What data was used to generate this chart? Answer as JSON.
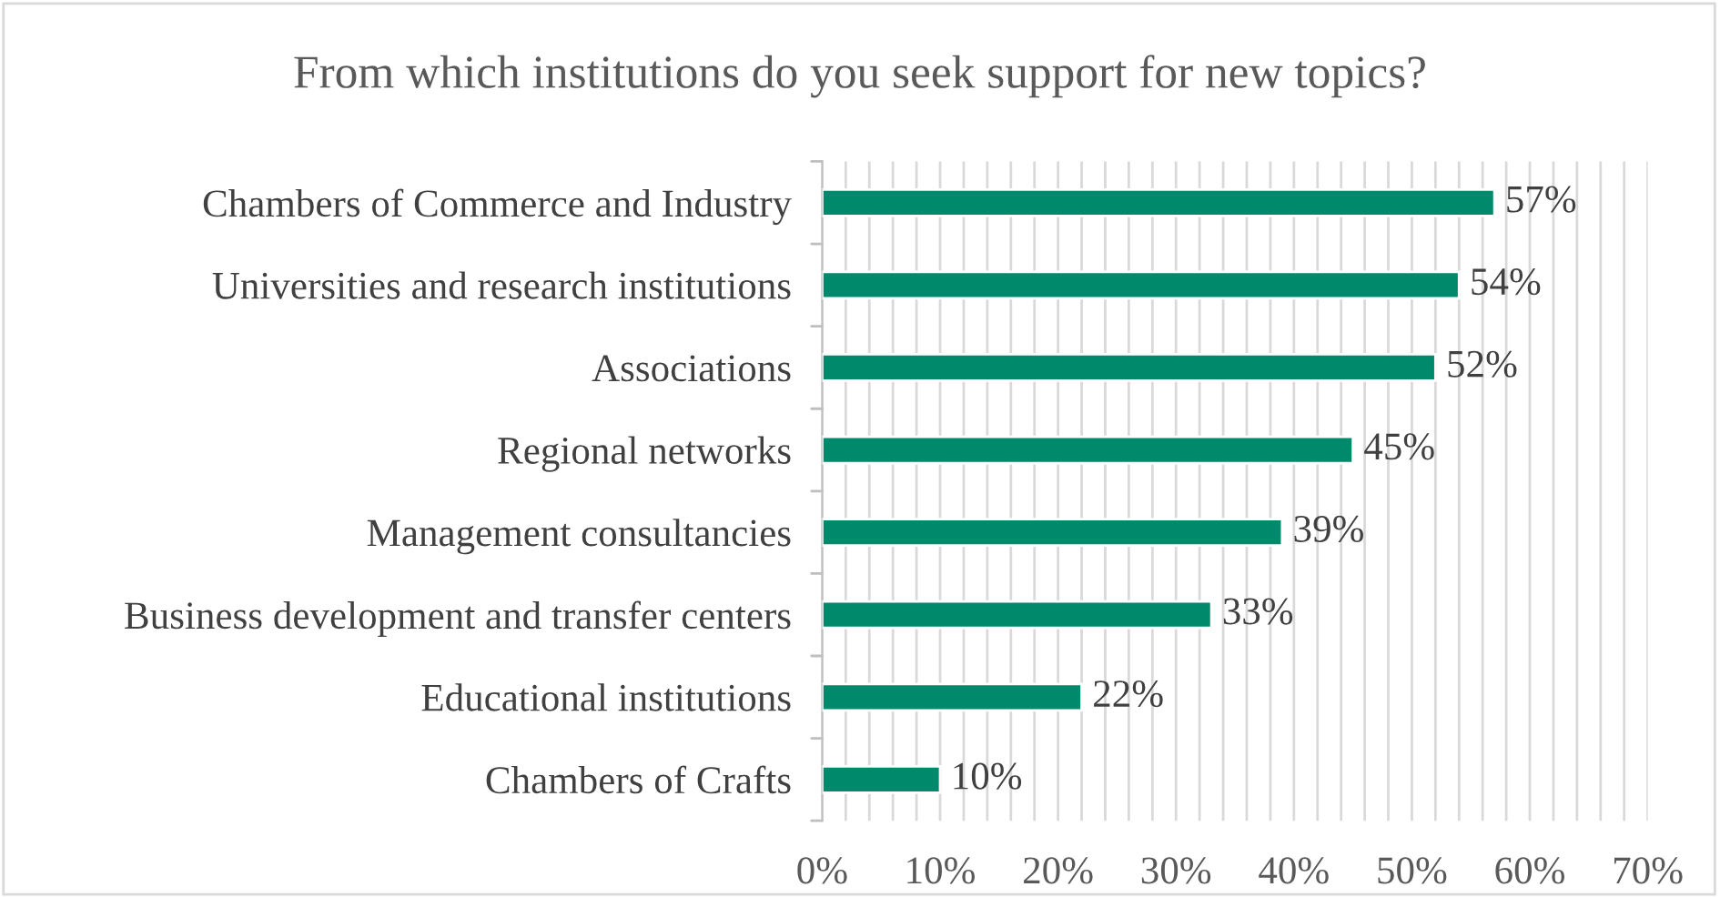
{
  "chart_data": {
    "type": "bar",
    "orientation": "horizontal",
    "title": "From which institutions do you seek support for new topics?",
    "categories": [
      "Chambers of Commerce and Industry",
      "Universities and research institutions",
      "Associations",
      "Regional networks",
      "Management consultancies",
      "Business development and transfer centers",
      "Educational institutions",
      "Chambers of Crafts"
    ],
    "values": [
      57,
      54,
      52,
      45,
      39,
      33,
      22,
      10
    ],
    "color": "#00896b",
    "value_labels": [
      "57%",
      "54%",
      "52%",
      "45%",
      "39%",
      "33%",
      "22%",
      "10%"
    ],
    "xlim": [
      0,
      70
    ],
    "xticks": [
      {
        "value": 0,
        "label": "0%"
      },
      {
        "value": 2,
        "label": null
      },
      {
        "value": 4,
        "label": null
      },
      {
        "value": 6,
        "label": null
      },
      {
        "value": 8,
        "label": null
      },
      {
        "value": 10,
        "label": "10%"
      },
      {
        "value": 12,
        "label": null
      },
      {
        "value": 14,
        "label": null
      },
      {
        "value": 16,
        "label": null
      },
      {
        "value": 18,
        "label": null
      },
      {
        "value": 20,
        "label": "20%"
      },
      {
        "value": 22,
        "label": null
      },
      {
        "value": 24,
        "label": null
      },
      {
        "value": 26,
        "label": null
      },
      {
        "value": 28,
        "label": null
      },
      {
        "value": 30,
        "label": "30%"
      },
      {
        "value": 32,
        "label": null
      },
      {
        "value": 34,
        "label": null
      },
      {
        "value": 36,
        "label": null
      },
      {
        "value": 38,
        "label": null
      },
      {
        "value": 40,
        "label": "40%"
      },
      {
        "value": 42,
        "label": null
      },
      {
        "value": 44,
        "label": null
      },
      {
        "value": 46,
        "label": null
      },
      {
        "value": 48,
        "label": null
      },
      {
        "value": 50,
        "label": "50%"
      },
      {
        "value": 52,
        "label": null
      },
      {
        "value": 54,
        "label": null
      },
      {
        "value": 56,
        "label": null
      },
      {
        "value": 58,
        "label": null
      },
      {
        "value": 60,
        "label": "60%"
      },
      {
        "value": 62,
        "label": null
      },
      {
        "value": 64,
        "label": null
      },
      {
        "value": 66,
        "label": null
      },
      {
        "value": 68,
        "label": null
      },
      {
        "value": 70,
        "label": "70%"
      }
    ],
    "grid": "x",
    "legend": false
  }
}
